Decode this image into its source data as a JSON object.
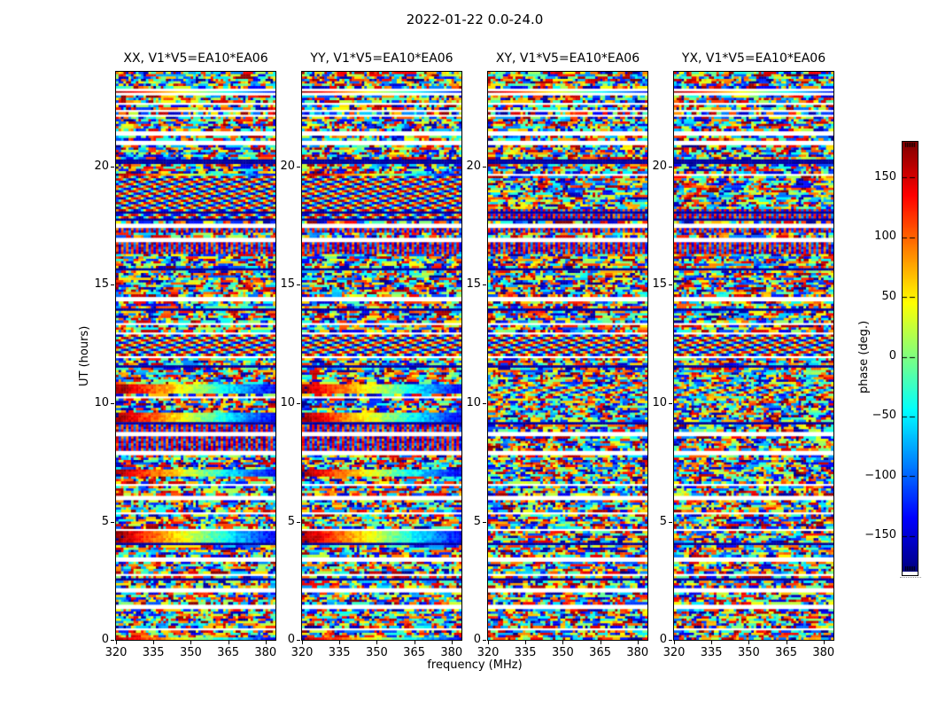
{
  "figure": {
    "suptitle": "2022-01-22 0.0-24.0",
    "xlabel": "frequency (MHz)",
    "ylabel": "UT (hours)",
    "colorbar_label": "phase (deg.)"
  },
  "chart_data": {
    "type": "heatmap",
    "title": "2022-01-22 0.0-24.0",
    "xlabel": "frequency (MHz)",
    "ylabel": "UT (hours)",
    "x_range": [
      320,
      384
    ],
    "x_ticks": [
      320,
      335,
      350,
      365,
      380
    ],
    "y_range": [
      0,
      24
    ],
    "y_ticks": [
      0,
      5,
      10,
      15,
      20
    ],
    "colormap": "jet",
    "colorbar": {
      "label": "phase (deg.)",
      "range": [
        -180,
        180
      ],
      "ticks": [
        150,
        100,
        50,
        0,
        -50,
        -100,
        -150
      ]
    },
    "panels": [
      {
        "id": "XX",
        "title": "XX, V1*V5=EA10*EA06"
      },
      {
        "id": "YY",
        "title": "YY, V1*V5=EA10*EA06"
      },
      {
        "id": "XY",
        "title": "XY, V1*V5=EA10*EA06"
      },
      {
        "id": "YX",
        "title": "YX, V1*V5=EA10*EA06"
      }
    ],
    "n_freq_bins": 64,
    "n_time_rows": 240,
    "seeds": [
      101,
      202,
      303,
      404
    ],
    "features": [
      {
        "t0": 23.0,
        "t1": 23.3,
        "type": "whiteline",
        "panels": "all"
      },
      {
        "t0": 22.62,
        "t1": 22.74,
        "type": "white",
        "panels": "all"
      },
      {
        "t0": 22.33,
        "t1": 22.45,
        "type": "white",
        "panels": "all"
      },
      {
        "t0": 22.1,
        "t1": 22.2,
        "type": "white",
        "panels": "all"
      },
      {
        "t0": 21.28,
        "t1": 21.55,
        "type": "white",
        "panels": "all"
      },
      {
        "t0": 20.92,
        "t1": 21.14,
        "type": "white",
        "panels": "all"
      },
      {
        "t0": 20.08,
        "t1": 20.26,
        "type": "dark",
        "panels": "all"
      },
      {
        "t0": 19.56,
        "t1": 19.74,
        "type": "grad",
        "panels": "xxyy"
      },
      {
        "t0": 19.56,
        "t1": 19.7,
        "type": "white",
        "panels": "xyyx"
      },
      {
        "t0": 17.76,
        "t1": 19.56,
        "type": "wave",
        "panels": "xxyy"
      },
      {
        "t0": 18.0,
        "t1": 18.1,
        "type": "dark",
        "panels": "all"
      },
      {
        "t0": 17.76,
        "t1": 18.2,
        "type": "comb",
        "panels": "xyyx"
      },
      {
        "t0": 17.66,
        "t1": 17.76,
        "type": "dark",
        "panels": "all"
      },
      {
        "t0": 17.42,
        "t1": 17.6,
        "type": "white",
        "panels": "all"
      },
      {
        "t0": 17.16,
        "t1": 17.42,
        "type": "comb",
        "panels": "all"
      },
      {
        "t0": 16.82,
        "t1": 16.96,
        "type": "white",
        "panels": "all"
      },
      {
        "t0": 16.35,
        "t1": 16.8,
        "type": "comb",
        "panels": "all"
      },
      {
        "t0": 15.58,
        "t1": 15.72,
        "type": "dark",
        "panels": "all"
      },
      {
        "t0": 14.3,
        "t1": 14.5,
        "type": "white",
        "panels": "all"
      },
      {
        "t0": 13.9,
        "t1": 13.98,
        "type": "dark",
        "panels": "all"
      },
      {
        "t0": 13.28,
        "t1": 13.38,
        "type": "white",
        "panels": "all"
      },
      {
        "t0": 12.9,
        "t1": 13.02,
        "type": "white",
        "panels": "all"
      },
      {
        "t0": 12.0,
        "t1": 12.86,
        "type": "wave",
        "panels": "all"
      },
      {
        "t0": 11.86,
        "t1": 11.98,
        "type": "white",
        "panels": "all"
      },
      {
        "t0": 11.5,
        "t1": 11.62,
        "type": "dark",
        "panels": "all"
      },
      {
        "t0": 10.4,
        "t1": 10.76,
        "type": "grad",
        "panels": "xxyy"
      },
      {
        "t0": 10.3,
        "t1": 10.8,
        "type": "wave",
        "panels": "xyyx",
        "weak": true
      },
      {
        "t0": 10.16,
        "t1": 10.3,
        "type": "white",
        "panels": "xxyy"
      },
      {
        "t0": 9.24,
        "t1": 9.62,
        "type": "grad",
        "panels": "xxyy"
      },
      {
        "t0": 9.08,
        "t1": 9.16,
        "type": "dark",
        "panels": "all"
      },
      {
        "t0": 7.96,
        "t1": 9.08,
        "type": "comb",
        "panels": "xxyy"
      },
      {
        "t0": 8.62,
        "t1": 8.76,
        "type": "white",
        "panels": "all"
      },
      {
        "t0": 7.84,
        "t1": 7.96,
        "type": "white",
        "panels": "all"
      },
      {
        "t0": 6.88,
        "t1": 7.2,
        "type": "grad",
        "panels": "xxyy"
      },
      {
        "t0": 6.46,
        "t1": 6.6,
        "type": "white",
        "panels": "all"
      },
      {
        "t0": 5.9,
        "t1": 6.1,
        "type": "white",
        "panels": "all"
      },
      {
        "t0": 5.28,
        "t1": 5.38,
        "type": "white",
        "panels": "all"
      },
      {
        "t0": 4.62,
        "t1": 4.72,
        "type": "white",
        "panels": "all"
      },
      {
        "t0": 4.08,
        "t1": 4.56,
        "type": "grad",
        "panels": "xxyy"
      },
      {
        "t0": 4.0,
        "t1": 4.08,
        "type": "dark",
        "panels": "all"
      },
      {
        "t0": 3.3,
        "t1": 3.46,
        "type": "white",
        "panels": "all"
      },
      {
        "t0": 2.72,
        "t1": 2.8,
        "type": "white",
        "panels": "all"
      },
      {
        "t0": 2.48,
        "t1": 2.56,
        "type": "dark",
        "panels": "all"
      },
      {
        "t0": 2.04,
        "t1": 2.2,
        "type": "white",
        "panels": "all"
      },
      {
        "t0": 1.34,
        "t1": 1.5,
        "type": "white",
        "panels": "all"
      },
      {
        "t0": 0.36,
        "t1": 0.52,
        "type": "white",
        "panels": "all"
      },
      {
        "t0": 0.0,
        "t1": 0.14,
        "type": "grad",
        "panels": "xxyy"
      }
    ]
  }
}
